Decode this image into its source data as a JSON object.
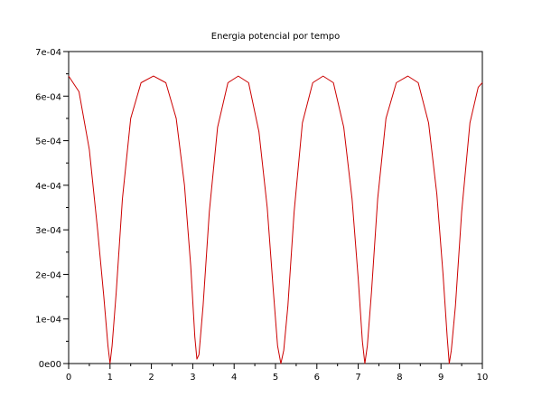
{
  "chart_data": {
    "type": "line",
    "title": "Energia potencial por tempo",
    "xlabel": "",
    "ylabel": "",
    "xlim": [
      0,
      10
    ],
    "ylim": [
      0,
      0.0007
    ],
    "grid": false,
    "x_ticks": [
      0,
      1,
      2,
      3,
      4,
      5,
      6,
      7,
      8,
      9,
      10
    ],
    "x_tick_labels": [
      "0",
      "1",
      "2",
      "3",
      "4",
      "5",
      "6",
      "7",
      "8",
      "9",
      "10"
    ],
    "y_ticks": [
      0,
      0.0001,
      0.0002,
      0.0003,
      0.0004,
      0.0005,
      0.0006,
      0.0007
    ],
    "y_tick_labels": [
      "0e00",
      "1e-04",
      "2e-04",
      "3e-04",
      "4e-04",
      "5e-04",
      "6e-04",
      "7e-04"
    ],
    "series": [
      {
        "color": "#cc0000",
        "x": [
          0,
          0.25,
          0.5,
          0.7,
          0.85,
          0.95,
          1.0,
          1.05,
          1.15,
          1.3,
          1.5,
          1.75,
          2.05,
          2.35,
          2.6,
          2.8,
          2.95,
          3.05,
          3.1,
          3.15,
          3.25,
          3.4,
          3.6,
          3.85,
          4.1,
          4.35,
          4.6,
          4.8,
          4.95,
          5.05,
          5.13,
          5.2,
          5.3,
          5.45,
          5.65,
          5.9,
          6.15,
          6.4,
          6.65,
          6.85,
          7.0,
          7.1,
          7.16,
          7.22,
          7.32,
          7.47,
          7.67,
          7.92,
          8.2,
          8.45,
          8.7,
          8.9,
          9.05,
          9.15,
          9.2,
          9.25,
          9.35,
          9.5,
          9.7,
          9.9,
          10.0
        ],
        "y": [
          0.000645,
          0.00061,
          0.00048,
          0.0003,
          0.00015,
          4e-05,
          0.0,
          4e-05,
          0.00016,
          0.00037,
          0.00055,
          0.00063,
          0.000645,
          0.00063,
          0.00055,
          0.0004,
          0.00022,
          6e-05,
          1e-05,
          2e-05,
          0.00013,
          0.00034,
          0.00053,
          0.00063,
          0.000645,
          0.00063,
          0.00052,
          0.00035,
          0.00016,
          4e-05,
          0.0,
          3e-05,
          0.00013,
          0.00034,
          0.00054,
          0.00063,
          0.000645,
          0.00063,
          0.00053,
          0.00037,
          0.00019,
          5e-05,
          0.0,
          4e-05,
          0.00016,
          0.00037,
          0.00055,
          0.00063,
          0.000645,
          0.00063,
          0.00054,
          0.00038,
          0.0002,
          6e-05,
          0.0,
          3e-05,
          0.00013,
          0.00034,
          0.00054,
          0.00062,
          0.00063
        ]
      }
    ]
  }
}
